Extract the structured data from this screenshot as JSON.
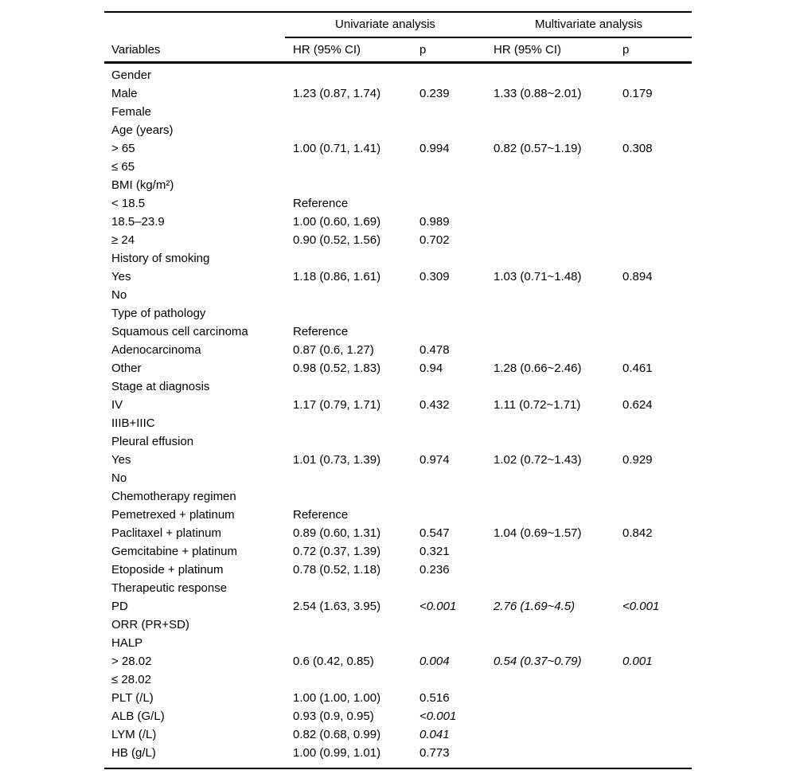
{
  "table": {
    "header": {
      "groups": [
        "Univariate analysis",
        "Multivariate analysis"
      ],
      "columns": [
        "Variables",
        "HR (95% CI)",
        "p",
        "HR (95% CI)",
        "p"
      ]
    },
    "rows": [
      {
        "variable": "Gender",
        "cells": [
          "",
          "",
          "",
          ""
        ]
      },
      {
        "variable": "Male",
        "cells": [
          "1.23 (0.87, 1.74)",
          "0.239",
          "1.33 (0.88~2.01)",
          "0.179"
        ]
      },
      {
        "variable": "Female",
        "cells": [
          "",
          "",
          "",
          ""
        ]
      },
      {
        "variable": "Age (years)",
        "cells": [
          "",
          "",
          "",
          ""
        ]
      },
      {
        "variable": "> 65",
        "cells": [
          "1.00 (0.71, 1.41)",
          "0.994",
          "0.82 (0.57~1.19)",
          "0.308"
        ]
      },
      {
        "variable": "≤ 65",
        "cells": [
          "",
          "",
          "",
          ""
        ]
      },
      {
        "variable": "BMI (kg/m²)",
        "cells": [
          "",
          "",
          "",
          ""
        ]
      },
      {
        "variable": "< 18.5",
        "cells": [
          "Reference",
          "",
          "",
          ""
        ]
      },
      {
        "variable": "18.5–23.9",
        "cells": [
          "1.00 (0.60, 1.69)",
          "0.989",
          "",
          ""
        ]
      },
      {
        "variable": "≥ 24",
        "cells": [
          "0.90 (0.52, 1.56)",
          "0.702",
          "",
          ""
        ]
      },
      {
        "variable": "History of smoking",
        "cells": [
          "",
          "",
          "",
          ""
        ]
      },
      {
        "variable": "Yes",
        "cells": [
          "1.18 (0.86, 1.61)",
          "0.309",
          "1.03 (0.71~1.48)",
          "0.894"
        ]
      },
      {
        "variable": "No",
        "cells": [
          "",
          "",
          "",
          ""
        ]
      },
      {
        "variable": "Type of pathology",
        "cells": [
          "",
          "",
          "",
          ""
        ]
      },
      {
        "variable": "Squamous cell carcinoma",
        "cells": [
          "Reference",
          "",
          "",
          ""
        ]
      },
      {
        "variable": "Adenocarcinoma",
        "cells": [
          "0.87 (0.6, 1.27)",
          "0.478",
          "",
          ""
        ]
      },
      {
        "variable": "Other",
        "cells": [
          "0.98 (0.52, 1.83)",
          "0.94",
          "1.28 (0.66~2.46)",
          "0.461"
        ]
      },
      {
        "variable": "Stage at diagnosis",
        "cells": [
          "",
          "",
          "",
          ""
        ]
      },
      {
        "variable": "IV",
        "cells": [
          "1.17 (0.79, 1.71)",
          "0.432",
          "1.11 (0.72~1.71)",
          "0.624"
        ]
      },
      {
        "variable": "IIIB+IIIC",
        "cells": [
          "",
          "",
          "",
          ""
        ]
      },
      {
        "variable": "Pleural effusion",
        "cells": [
          "",
          "",
          "",
          ""
        ]
      },
      {
        "variable": "Yes",
        "cells": [
          "1.01 (0.73, 1.39)",
          "0.974",
          "1.02 (0.72~1.43)",
          "0.929"
        ]
      },
      {
        "variable": "No",
        "cells": [
          "",
          "",
          "",
          ""
        ]
      },
      {
        "variable": "Chemotherapy regimen",
        "cells": [
          "",
          "",
          "",
          ""
        ]
      },
      {
        "variable": "Pemetrexed + platinum",
        "cells": [
          "Reference",
          "",
          "",
          ""
        ]
      },
      {
        "variable": "Paclitaxel + platinum",
        "cells": [
          "0.89 (0.60, 1.31)",
          "0.547",
          "1.04 (0.69~1.57)",
          "0.842"
        ]
      },
      {
        "variable": "Gemcitabine + platinum",
        "cells": [
          "0.72 (0.37, 1.39)",
          "0.321",
          "",
          ""
        ]
      },
      {
        "variable": "Etoposide + platinum",
        "cells": [
          "0.78 (0.52, 1.18)",
          "0.236",
          "",
          ""
        ]
      },
      {
        "variable": "Therapeutic response",
        "cells": [
          "",
          "",
          "",
          ""
        ]
      },
      {
        "variable": "PD",
        "cells": [
          "2.54 (1.63, 3.95)",
          "<0.001",
          "2.76 (1.69~4.5)",
          "<0.001"
        ],
        "italics": [
          false,
          false,
          true,
          true,
          true
        ]
      },
      {
        "variable": "ORR (PR+SD)",
        "cells": [
          "",
          "",
          "",
          ""
        ]
      },
      {
        "variable": "HALP",
        "cells": [
          "",
          "",
          "",
          ""
        ]
      },
      {
        "variable": "> 28.02",
        "cells": [
          "0.6 (0.42, 0.85)",
          "0.004",
          "0.54 (0.37~0.79)",
          "0.001"
        ],
        "italics": [
          false,
          false,
          true,
          true,
          true
        ]
      },
      {
        "variable": "≤ 28.02",
        "cells": [
          "",
          "",
          "",
          ""
        ]
      },
      {
        "variable": "PLT (/L)",
        "cells": [
          "1.00 (1.00, 1.00)",
          "0.516",
          "",
          ""
        ]
      },
      {
        "variable": "ALB (G/L)",
        "cells": [
          "0.93 (0.9, 0.95)",
          "<0.001",
          "",
          ""
        ],
        "italics": [
          false,
          false,
          true,
          false,
          false
        ]
      },
      {
        "variable": "LYM (/L)",
        "cells": [
          "0.82 (0.68, 0.99)",
          "0.041",
          "",
          ""
        ],
        "italics": [
          false,
          false,
          true,
          false,
          false
        ]
      },
      {
        "variable": "HB (g/L)",
        "cells": [
          "1.00 (0.99, 1.01)",
          "0.773",
          "",
          ""
        ]
      }
    ]
  }
}
